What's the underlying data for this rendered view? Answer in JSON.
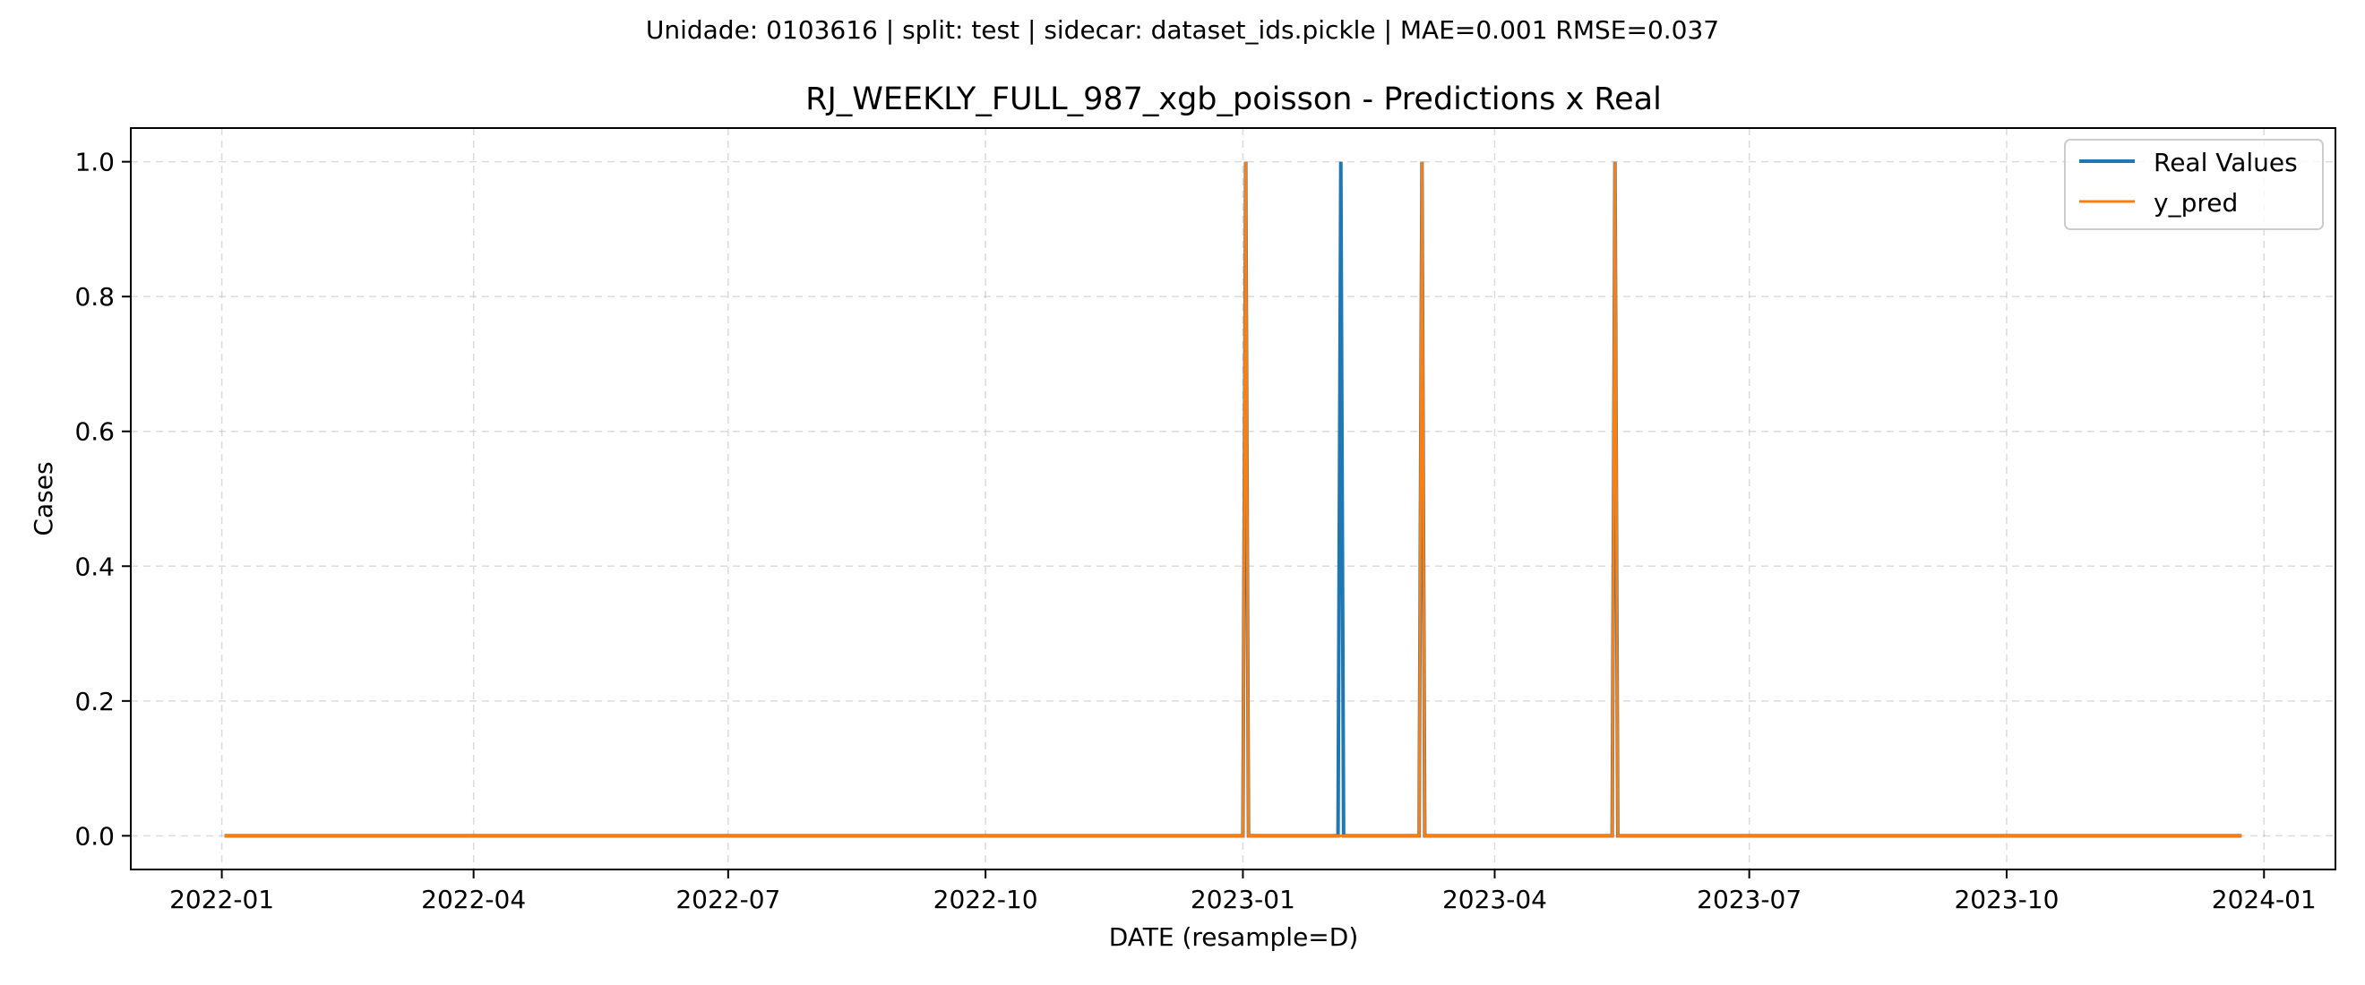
{
  "chart_data": {
    "type": "line",
    "suptitle": "Unidade: 0103616 | split: test | sidecar: dataset_ids.pickle | MAE=0.001  RMSE=0.037",
    "title": "RJ_WEEKLY_FULL_987_xgb_poisson - Predictions x Real",
    "xlabel": "DATE (resample=D)",
    "ylabel": "Cases",
    "x_range": [
      "2022-01-01",
      "2023-12-25"
    ],
    "ylim": [
      -0.05,
      1.05
    ],
    "x_ticks": [
      "2022-01",
      "2022-04",
      "2022-07",
      "2022-10",
      "2023-01",
      "2023-04",
      "2023-07",
      "2023-10",
      "2024-01"
    ],
    "y_ticks": [
      "0.0",
      "0.2",
      "0.4",
      "0.6",
      "0.8",
      "1.0"
    ],
    "grid": true,
    "legend_position": "top-right",
    "series": [
      {
        "name": "Real Values",
        "color": "#1f77b4",
        "points": [
          [
            "2022-01-02",
            0
          ],
          [
            "2023-01-01",
            0
          ],
          [
            "2023-01-02",
            1
          ],
          [
            "2023-01-03",
            0
          ],
          [
            "2023-02-04",
            0
          ],
          [
            "2023-02-05",
            1
          ],
          [
            "2023-02-06",
            0
          ],
          [
            "2023-03-05",
            0
          ],
          [
            "2023-03-06",
            1
          ],
          [
            "2023-03-07",
            0
          ],
          [
            "2023-05-13",
            0
          ],
          [
            "2023-05-14",
            1
          ],
          [
            "2023-05-15",
            0
          ],
          [
            "2023-12-24",
            0
          ]
        ]
      },
      {
        "name": "y_pred",
        "color": "#ff7f0e",
        "points": [
          [
            "2022-01-02",
            0
          ],
          [
            "2023-01-01",
            0
          ],
          [
            "2023-01-02",
            1
          ],
          [
            "2023-01-03",
            0
          ],
          [
            "2023-03-05",
            0
          ],
          [
            "2023-03-06",
            1
          ],
          [
            "2023-03-07",
            0
          ],
          [
            "2023-05-13",
            0
          ],
          [
            "2023-05-14",
            1
          ],
          [
            "2023-05-15",
            0
          ],
          [
            "2023-12-24",
            0
          ]
        ]
      }
    ]
  }
}
